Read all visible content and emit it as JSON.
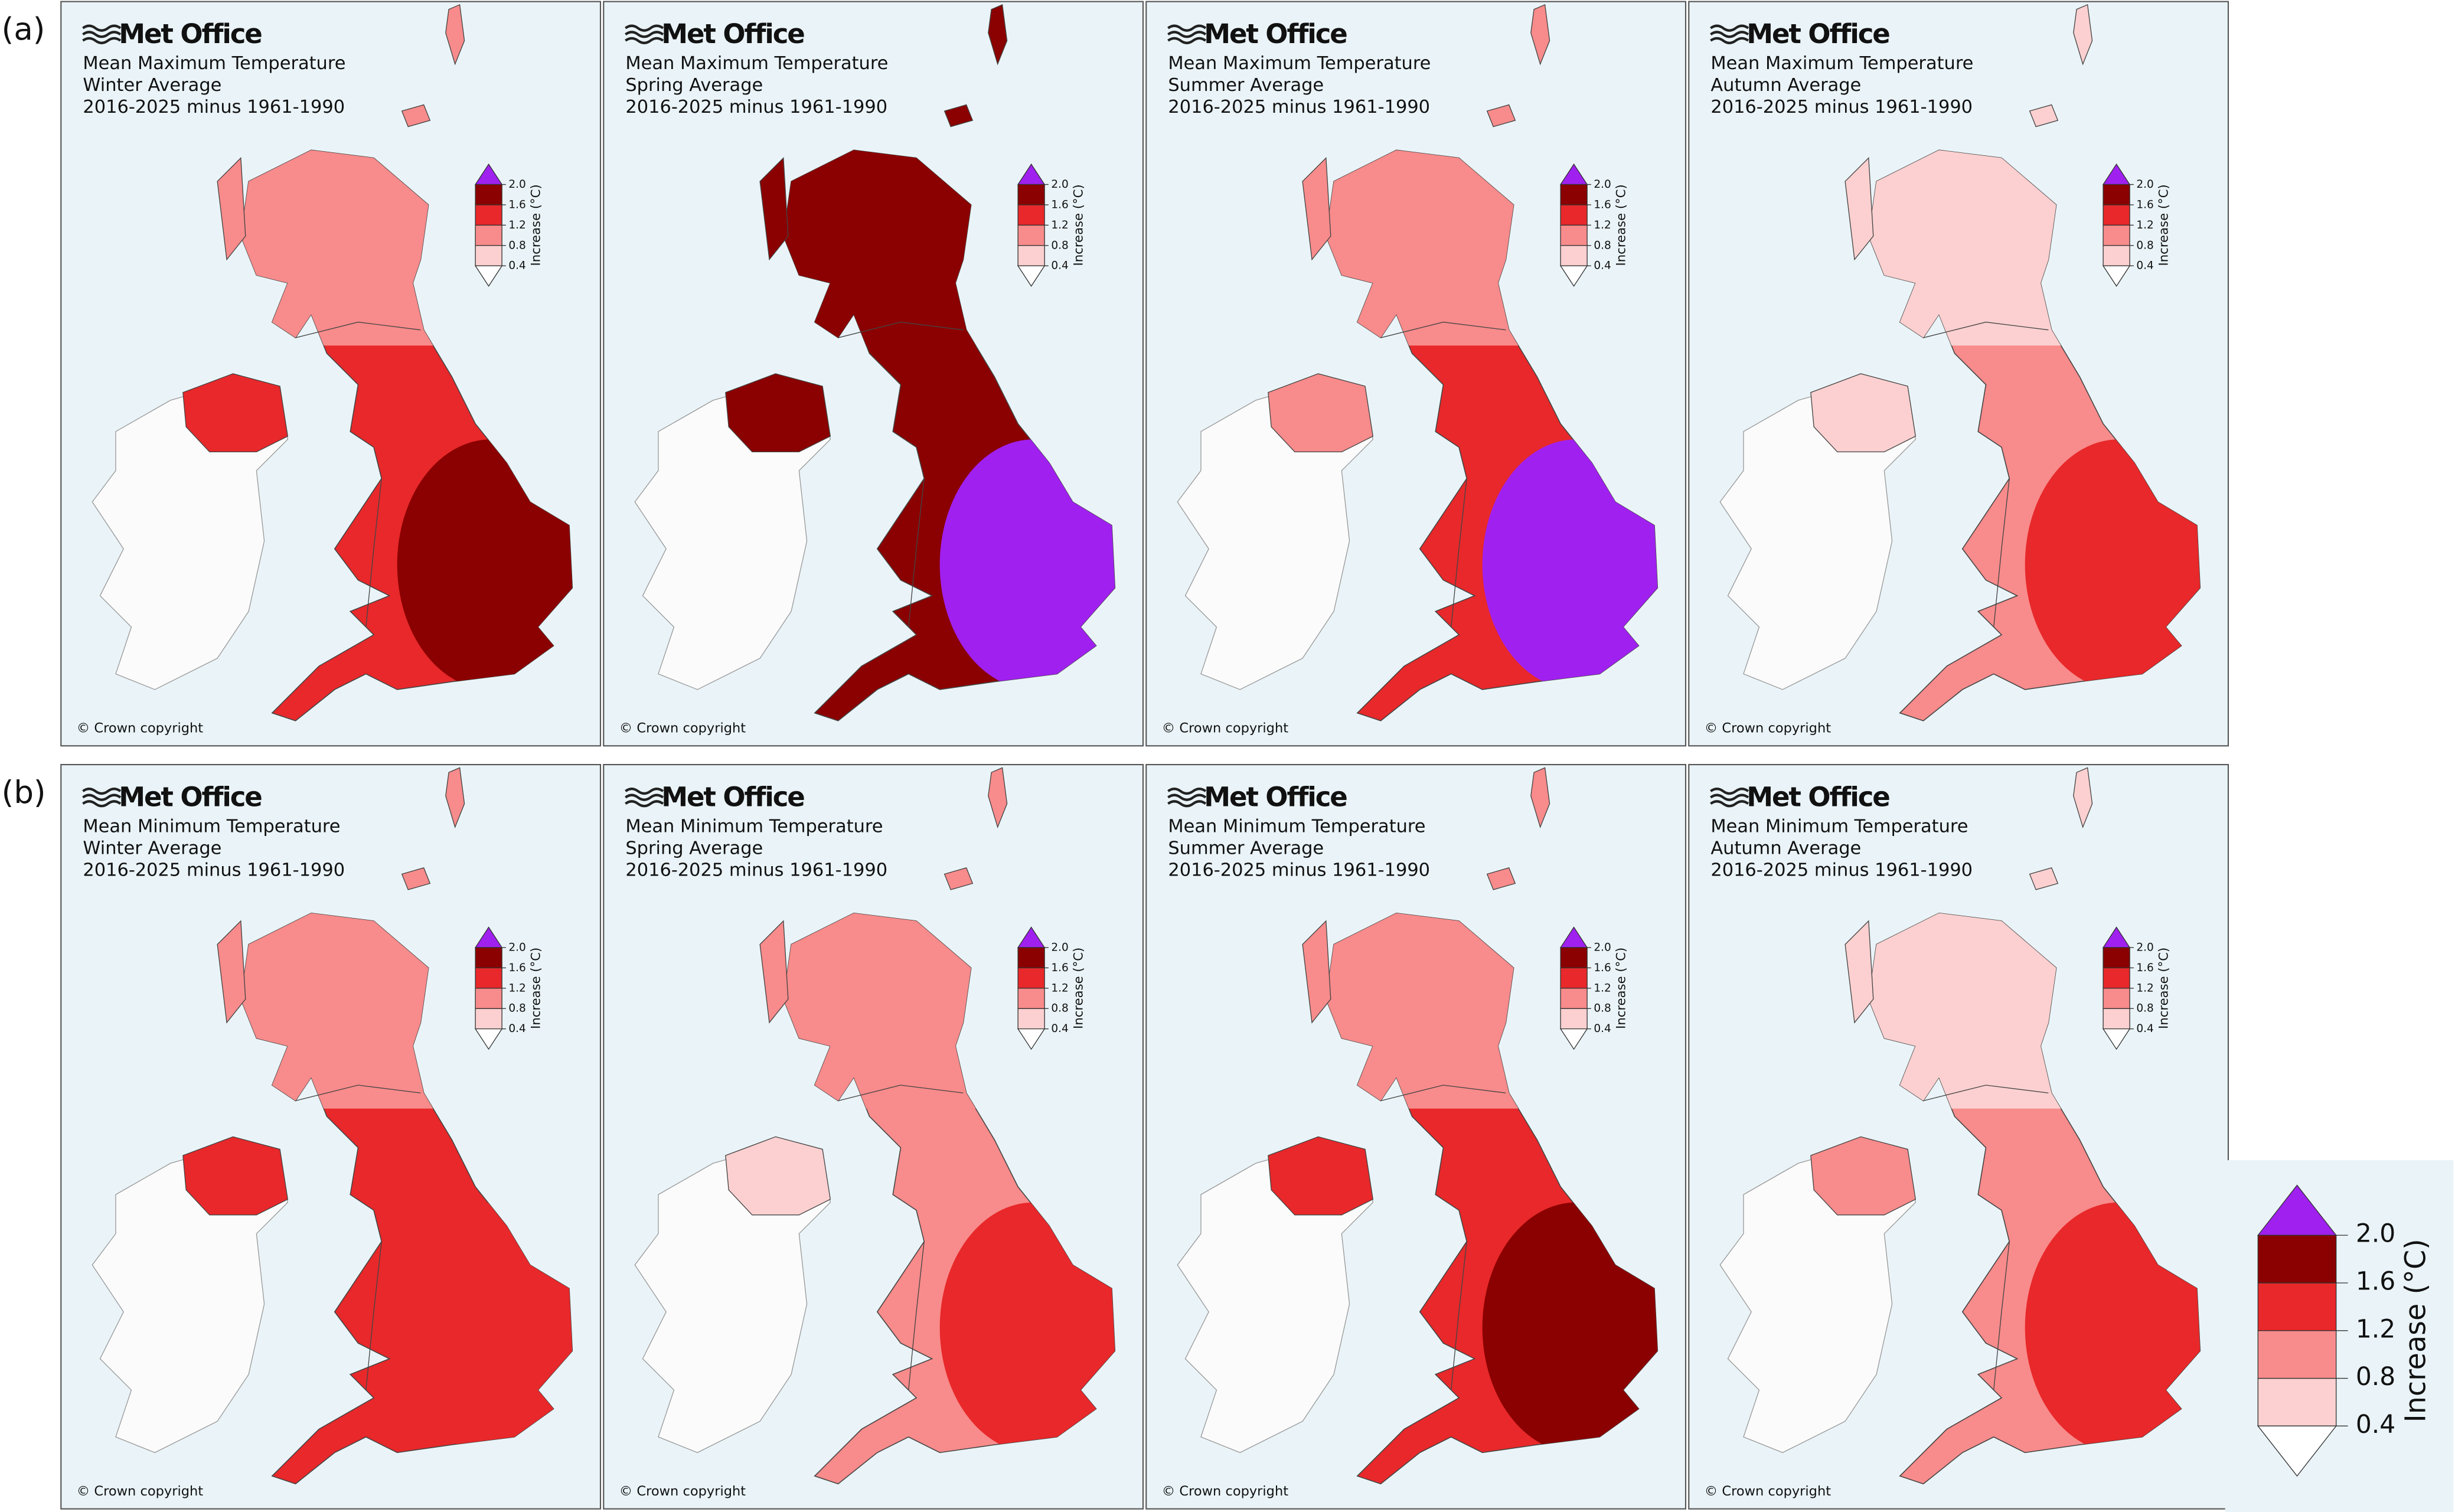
{
  "row_labels": [
    "(a)",
    "(b)"
  ],
  "panels": [
    {
      "logo": "Met Office",
      "title": "Mean Maximum Temperature",
      "season": "Winter Average",
      "period": "2016-2025 minus 1961-1990",
      "copyright": "© Crown copyright"
    },
    {
      "logo": "Met Office",
      "title": "Mean Maximum Temperature",
      "season": "Spring Average",
      "period": "2016-2025 minus 1961-1990",
      "copyright": "© Crown copyright"
    },
    {
      "logo": "Met Office",
      "title": "Mean Maximum Temperature",
      "season": "Summer Average",
      "period": "2016-2025 minus 1961-1990",
      "copyright": "© Crown copyright"
    },
    {
      "logo": "Met Office",
      "title": "Mean Maximum Temperature",
      "season": "Autumn Average",
      "period": "2016-2025 minus 1961-1990",
      "copyright": "© Crown copyright"
    },
    {
      "logo": "Met Office",
      "title": "Mean Minimum Temperature",
      "season": "Winter Average",
      "period": "2016-2025 minus 1961-1990",
      "copyright": "© Crown copyright"
    },
    {
      "logo": "Met Office",
      "title": "Mean Minimum Temperature",
      "season": "Spring Average",
      "period": "2016-2025 minus 1961-1990",
      "copyright": "© Crown copyright"
    },
    {
      "logo": "Met Office",
      "title": "Mean Minimum Temperature",
      "season": "Summer Average",
      "period": "2016-2025 minus 1961-1990",
      "copyright": "© Crown copyright"
    },
    {
      "logo": "Met Office",
      "title": "Mean Minimum Temperature",
      "season": "Autumn Average",
      "period": "2016-2025 minus 1961-1990",
      "copyright": "© Crown copyright"
    }
  ],
  "colorbar": {
    "label": "Increase (°C)",
    "ticks": [
      0.4,
      0.8,
      1.2,
      1.6,
      {
        "value": 2,
        "label": "2.0"
      }
    ],
    "colors": [
      "#fcd0d0",
      "#f88b8b",
      "#e8282a",
      "#8b0000"
    ],
    "over_color": "#a020f0",
    "under_color": "#ffffff"
  }
}
